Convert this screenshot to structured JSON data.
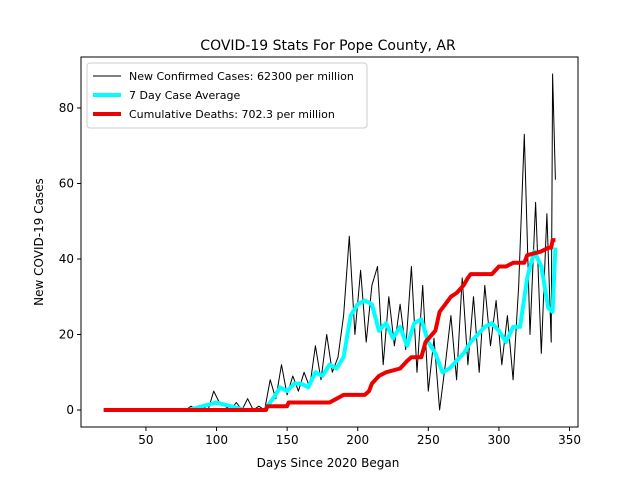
{
  "chart_data": {
    "type": "line",
    "title": "COVID-19 Stats For Pope County, AR",
    "x_label": "Days Since 2020 Began",
    "y_label": "New COVID-19 Cases",
    "xlim": [
      4,
      356
    ],
    "ylim": [
      -4.5,
      93.5
    ],
    "xticks": [
      50,
      100,
      150,
      200,
      250,
      300,
      350
    ],
    "yticks": [
      0,
      20,
      40,
      60,
      80
    ],
    "legend": "upper left",
    "series": [
      {
        "name": "New Confirmed Cases: 62300 per million",
        "color": "#000000",
        "width": 1,
        "x": [
          78,
          82,
          86,
          90,
          94,
          98,
          102,
          106,
          110,
          114,
          118,
          122,
          126,
          130,
          134,
          138,
          142,
          146,
          150,
          154,
          158,
          162,
          166,
          170,
          174,
          178,
          182,
          186,
          190,
          194,
          198,
          202,
          206,
          210,
          214,
          218,
          222,
          226,
          230,
          234,
          238,
          242,
          246,
          250,
          254,
          258,
          262,
          266,
          270,
          274,
          278,
          282,
          286,
          290,
          294,
          298,
          302,
          306,
          310,
          314,
          318,
          322,
          326,
          330,
          334,
          337,
          338,
          340
        ],
        "values": [
          0,
          1,
          0,
          1,
          0,
          5,
          2,
          1,
          0,
          2,
          0,
          3,
          0,
          1,
          0,
          8,
          3,
          12,
          4,
          9,
          5,
          10,
          6,
          17,
          8,
          20,
          10,
          14,
          25,
          46,
          20,
          37,
          18,
          33,
          38,
          12,
          30,
          17,
          28,
          16,
          38,
          10,
          33,
          5,
          19,
          0,
          12,
          25,
          8,
          35,
          12,
          30,
          10,
          33,
          17,
          29,
          12,
          25,
          8,
          33,
          73,
          20,
          55,
          15,
          52,
          18,
          89,
          61
        ]
      },
      {
        "name": "7 Day Case Average",
        "color": "#00ffff",
        "width": 4,
        "x": [
          80,
          90,
          100,
          110,
          120,
          134,
          140,
          145,
          150,
          155,
          160,
          165,
          170,
          175,
          180,
          185,
          190,
          195,
          200,
          205,
          210,
          215,
          220,
          225,
          230,
          235,
          240,
          245,
          250,
          255,
          260,
          265,
          270,
          275,
          280,
          285,
          290,
          295,
          300,
          305,
          310,
          315,
          320,
          325,
          330,
          335,
          338,
          340
        ],
        "values": [
          0,
          1,
          2,
          1,
          0,
          0,
          3,
          6,
          5,
          7,
          7,
          6,
          10,
          9,
          12,
          11,
          14,
          25,
          28,
          29,
          28,
          21,
          23,
          19,
          22,
          17,
          23,
          24,
          18,
          15,
          10,
          11,
          13,
          15,
          18,
          20,
          22,
          23,
          21,
          18,
          22,
          22,
          35,
          42,
          38,
          27,
          26,
          43
        ]
      },
      {
        "name": "Cumulative Deaths: 702.3 per million",
        "color": "#ee0000",
        "width": 4,
        "x": [
          20,
          135,
          136,
          150,
          151,
          180,
          185,
          190,
          205,
          208,
          210,
          215,
          220,
          230,
          235,
          238,
          245,
          248,
          255,
          258,
          262,
          266,
          270,
          275,
          278,
          280,
          295,
          300,
          305,
          310,
          318,
          320,
          330,
          335,
          337,
          338,
          340
        ],
        "values": [
          0,
          0,
          1,
          1,
          2,
          2,
          3,
          4,
          4,
          5,
          7,
          9,
          10,
          11,
          13,
          14,
          14,
          18,
          21,
          26,
          28,
          30,
          31,
          33,
          35,
          36,
          36,
          38,
          38,
          39,
          39,
          41,
          42,
          43,
          43,
          45,
          45
        ]
      }
    ]
  }
}
